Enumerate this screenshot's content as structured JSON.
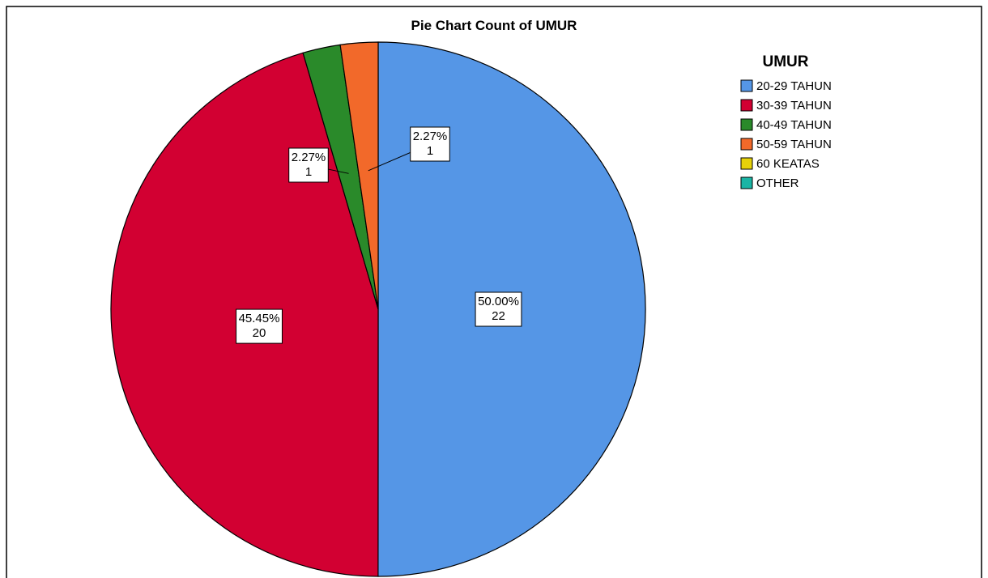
{
  "chart_data": {
    "type": "pie",
    "title": "Pie Chart Count of UMUR",
    "legend_title": "UMUR",
    "categories": [
      "20-29 TAHUN",
      "30-39 TAHUN",
      "40-49 TAHUN",
      "50-59 TAHUN",
      "60 KEATAS",
      "OTHER"
    ],
    "values": [
      50.0,
      45.45,
      2.27,
      2.27,
      0,
      0
    ],
    "value_labels": [
      "50.00%",
      "45.45%",
      "2.27%",
      "2.27%",
      null,
      null
    ],
    "counts": [
      22,
      20,
      1,
      1,
      0,
      0
    ],
    "colors": [
      "#5596e6",
      "#d20032",
      "#2a8a2a",
      "#f2692a",
      "#e6d20a",
      "#1ab5a5"
    ],
    "legend": "top-right"
  }
}
